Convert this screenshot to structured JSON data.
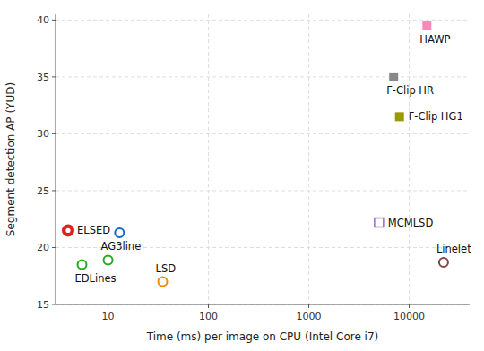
{
  "chart_data": {
    "type": "scatter",
    "xlabel": "Time (ms) per image on CPU (Intel Core i7)",
    "ylabel": "Segment detection AP (YUD)",
    "log": "x",
    "grid": true,
    "xlim": [
      3.0,
      40000.0
    ],
    "ylim": [
      15.0,
      40.5
    ],
    "xticks": [
      10,
      100,
      1000,
      10000
    ],
    "yticks": [
      15,
      20,
      25,
      30,
      35,
      40
    ],
    "series": [
      {
        "annotation": "ELSED",
        "color": "#dd2222",
        "marker": "circle-dot",
        "x": [
          4.0
        ],
        "values": [
          21.5
        ]
      },
      {
        "annotation": "EDLines",
        "color": "#22aa22",
        "marker": "circle-open",
        "x": [
          5.5
        ],
        "values": [
          18.5
        ]
      },
      {
        "annotation": "AG3line",
        "color": "#22aa22",
        "marker": "circle-open",
        "x": [
          10.0
        ],
        "values": [
          18.9
        ]
      },
      {
        "annotation": "LSD",
        "color": "#ff8800",
        "marker": "circle-open",
        "x": [
          35.0
        ],
        "values": [
          17.0
        ]
      },
      {
        "color": "#1166cc",
        "marker": "circle-open",
        "x": [
          13.0
        ],
        "values": [
          21.3
        ]
      },
      {
        "annotation": "MCMLSD",
        "color": "#9966cc",
        "marker": "square-open",
        "x": [
          5000.0
        ],
        "values": [
          22.2
        ]
      },
      {
        "annotation": "Linelet",
        "color": "#884444",
        "marker": "circle-open",
        "x": [
          22000.0
        ],
        "values": [
          18.7
        ]
      },
      {
        "annotation": "F-Clip HG1",
        "color": "#999900",
        "marker": "square",
        "x": [
          8000.0
        ],
        "values": [
          31.5
        ]
      },
      {
        "annotation": "F-Clip HR",
        "color": "#888888",
        "marker": "square",
        "x": [
          7000.0
        ],
        "values": [
          35.0
        ]
      },
      {
        "annotation": "HAWP",
        "color": "#ff88bb",
        "marker": "square",
        "x": [
          15000.0
        ],
        "values": [
          39.5
        ]
      }
    ]
  }
}
